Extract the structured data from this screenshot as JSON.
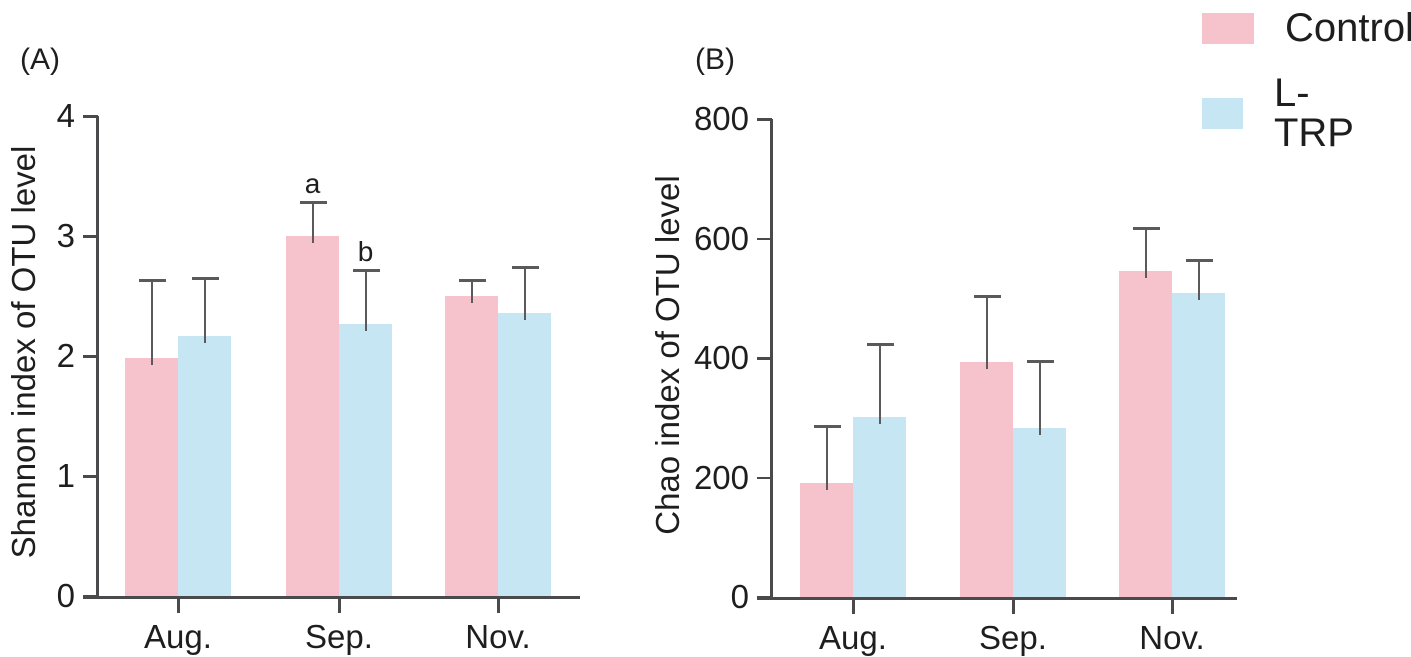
{
  "chart_data": [
    {
      "type": "bar",
      "panel_label": "(A)",
      "title": "",
      "xlabel": "",
      "ylabel": "Shannon index of OTU level",
      "ylim": [
        0,
        4
      ],
      "yticks": [
        0,
        1,
        2,
        3,
        4
      ],
      "categories": [
        "Aug.",
        "Sep.",
        "Nov."
      ],
      "grid": false,
      "error_bars": "upper",
      "series": [
        {
          "name": "Control",
          "color": "#F6C3CC",
          "values": [
            1.98,
            3.0,
            2.5
          ],
          "errors_up": [
            0.65,
            0.28,
            0.13
          ]
        },
        {
          "name": "L-TRP",
          "color": "#C7E6F3",
          "values": [
            2.17,
            2.27,
            2.36
          ],
          "errors_up": [
            0.48,
            0.45,
            0.38
          ]
        }
      ],
      "annotations": [
        {
          "text": "a",
          "category_index": 1,
          "series_index": 0
        },
        {
          "text": "b",
          "category_index": 1,
          "series_index": 1
        }
      ]
    },
    {
      "type": "bar",
      "panel_label": "(B)",
      "title": "",
      "xlabel": "",
      "ylabel": "Chao index of OTU level",
      "ylim": [
        0,
        800
      ],
      "yticks": [
        0,
        200,
        400,
        600,
        800
      ],
      "categories": [
        "Aug.",
        "Sep.",
        "Nov."
      ],
      "grid": false,
      "error_bars": "upper",
      "series": [
        {
          "name": "Control",
          "color": "#F6C3CC",
          "values": [
            190,
            393,
            545
          ],
          "errors_up": [
            97,
            110,
            73
          ]
        },
        {
          "name": "L-TRP",
          "color": "#C7E6F3",
          "values": [
            302,
            283,
            509
          ],
          "errors_up": [
            121,
            112,
            55
          ]
        }
      ],
      "annotations": []
    }
  ],
  "legend": {
    "position": "top-right",
    "items": [
      {
        "label": "Control",
        "color": "#F6C3CC"
      },
      {
        "label": "L-TRP",
        "color": "#C7E6F3"
      }
    ]
  },
  "colors": {
    "axis": "#4a4a4c",
    "error_bar": "#5a5a5c",
    "text": "#1e1e1e",
    "background": "#ffffff"
  }
}
